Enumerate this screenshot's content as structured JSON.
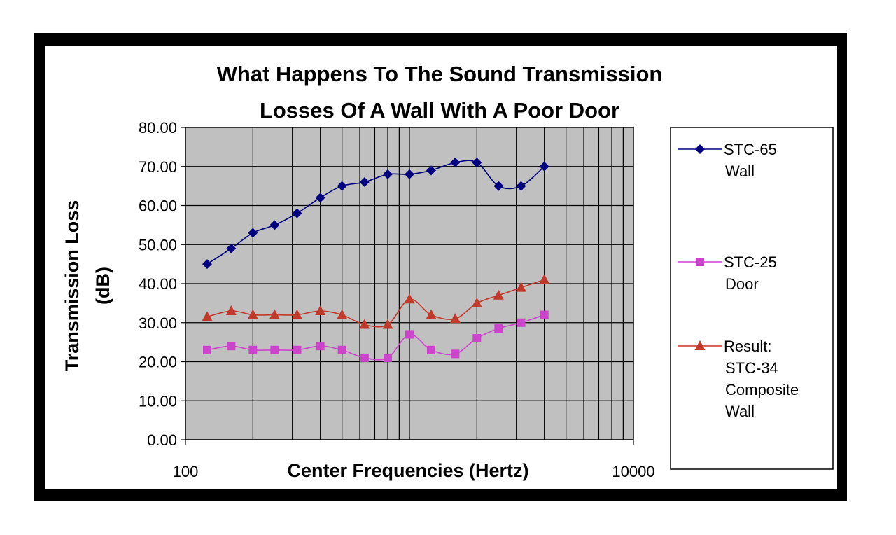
{
  "chart_data": {
    "type": "line",
    "title": [
      "What Happens To The Sound Transmission",
      "Losses Of A Wall With A Poor Door"
    ],
    "xlabel": "Center Frequencies (Hertz)",
    "ylabel": [
      "Transmission Loss",
      "(dB)"
    ],
    "x_scale": "log",
    "xlim": [
      100,
      10000
    ],
    "ylim": [
      0,
      80
    ],
    "x_tick_labels": [
      "100",
      "10000"
    ],
    "y_tick_labels": [
      "0.00",
      "10.00",
      "20.00",
      "30.00",
      "40.00",
      "50.00",
      "60.00",
      "70.00",
      "80.00"
    ],
    "grid": true,
    "legend_position": "right",
    "x": [
      125,
      160,
      200,
      250,
      315,
      400,
      500,
      630,
      800,
      1000,
      1250,
      1600,
      2000,
      2500,
      3150,
      4000
    ],
    "series": [
      {
        "name": [
          "STC-65",
          "Wall"
        ],
        "marker": "diamond",
        "color": "#000080",
        "values": [
          45,
          49,
          53,
          55,
          58,
          62,
          65,
          66,
          68,
          68,
          69,
          71,
          71,
          65,
          65,
          70
        ]
      },
      {
        "name": [
          "STC-25",
          "Door"
        ],
        "marker": "square",
        "color": "#cc44cc",
        "values": [
          23,
          24,
          23,
          23,
          23,
          24,
          23,
          21,
          21,
          27,
          23,
          22,
          26,
          28.5,
          30,
          32
        ]
      },
      {
        "name": [
          "Result:",
          "STC-34",
          "Composite",
          "Wall"
        ],
        "marker": "triangle",
        "color": "#c0392b",
        "values": [
          31.5,
          33,
          32,
          32,
          32,
          33,
          32,
          29.5,
          29.5,
          36,
          32,
          31,
          35,
          37,
          39,
          41
        ]
      }
    ],
    "colors": {
      "plot_background": "#c0c0c0",
      "frame": "#000000"
    }
  }
}
